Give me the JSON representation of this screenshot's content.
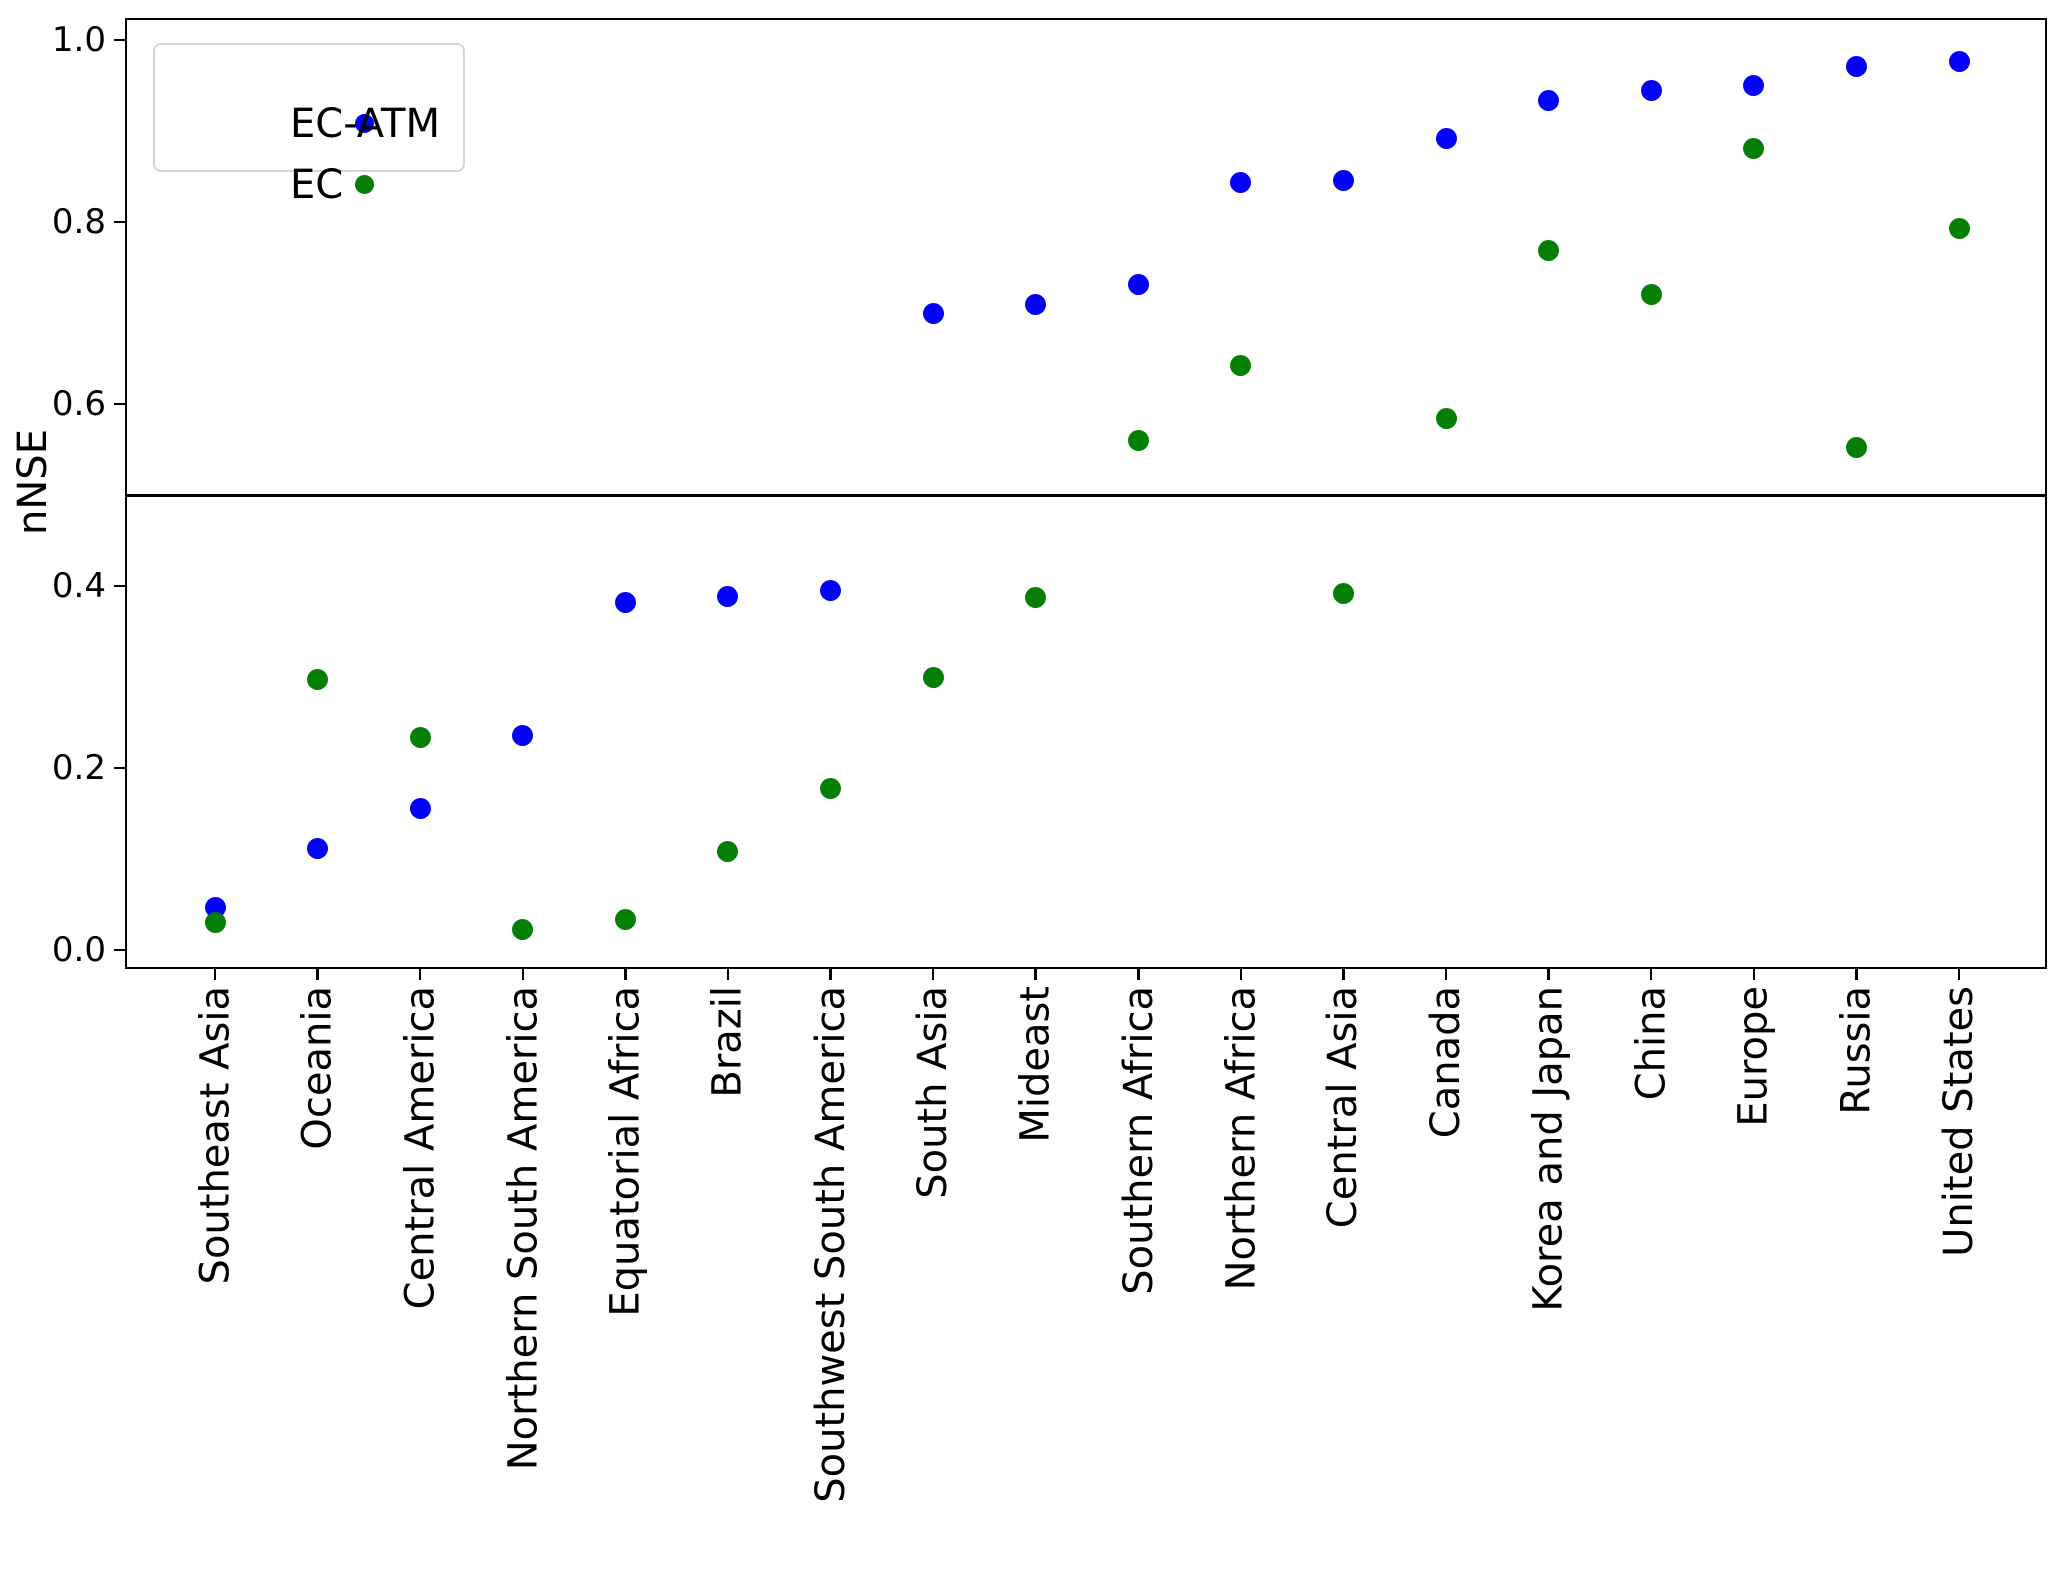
{
  "chart_data": {
    "type": "scatter",
    "title": "",
    "xlabel": "",
    "ylabel": "nNSE",
    "grid": false,
    "legend_position": "upper left",
    "reference_line_y": 0.5,
    "ylim": [
      -0.021,
      1.024
    ],
    "yticks": [
      0.0,
      0.2,
      0.4,
      0.6,
      0.8,
      1.0
    ],
    "ytick_labels": [
      "0.0",
      "0.2",
      "0.4",
      "0.6",
      "0.8",
      "1.0"
    ],
    "categories": [
      "Southeast Asia",
      "Oceania",
      "Central America",
      "Northern South America",
      "Equatorial Africa",
      "Brazil",
      "Southwest South America",
      "South Asia",
      "Mideast",
      "Southern Africa",
      "Northern Africa",
      "Central Asia",
      "Canada",
      "Korea and Japan",
      "China",
      "Europe",
      "Russia",
      "United States"
    ],
    "series": [
      {
        "name": "EC-ATM",
        "color": "#0202f5",
        "values": [
          0.047,
          0.111,
          0.156,
          0.236,
          0.382,
          0.388,
          0.395,
          0.7,
          0.709,
          0.731,
          0.843,
          0.846,
          0.892,
          0.933,
          0.945,
          0.95,
          0.971,
          0.976
        ]
      },
      {
        "name": "EC",
        "color": "#047e04",
        "values": [
          0.03,
          0.297,
          0.234,
          0.023,
          0.033,
          0.108,
          0.178,
          0.299,
          0.387,
          0.56,
          0.642,
          0.392,
          0.584,
          0.769,
          0.72,
          0.881,
          0.552,
          0.793
        ]
      }
    ]
  }
}
